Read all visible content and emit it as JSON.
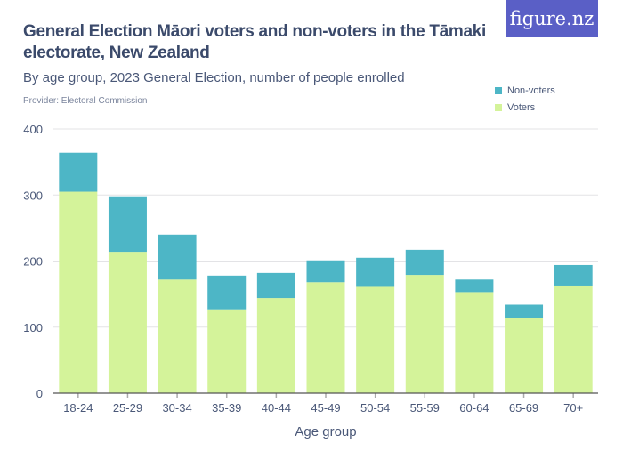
{
  "header": {
    "title": "General Election Māori voters and non-voters in the Tāmaki electorate, New Zealand",
    "subtitle": "By age group, 2023 General Election, number of people enrolled",
    "provider": "Provider: Electoral Commission",
    "logo": "figure.nz"
  },
  "chart_data": {
    "type": "bar",
    "stacked": true,
    "xlabel": "Age group",
    "ylabel": "",
    "ylim": [
      0,
      400
    ],
    "yticks": [
      0,
      100,
      200,
      300,
      400
    ],
    "grid": true,
    "legend_position": "top-right",
    "categories": [
      "18-24",
      "25-29",
      "30-34",
      "35-39",
      "40-44",
      "45-49",
      "50-54",
      "55-59",
      "60-64",
      "65-69",
      "70+"
    ],
    "series": [
      {
        "name": "Voters",
        "color": "#d4f39a",
        "values": [
          305,
          214,
          172,
          127,
          144,
          168,
          161,
          179,
          153,
          114,
          163
        ]
      },
      {
        "name": "Non-voters",
        "color": "#4db6c6",
        "values": [
          59,
          84,
          68,
          51,
          38,
          33,
          44,
          38,
          19,
          20,
          31
        ]
      }
    ]
  }
}
